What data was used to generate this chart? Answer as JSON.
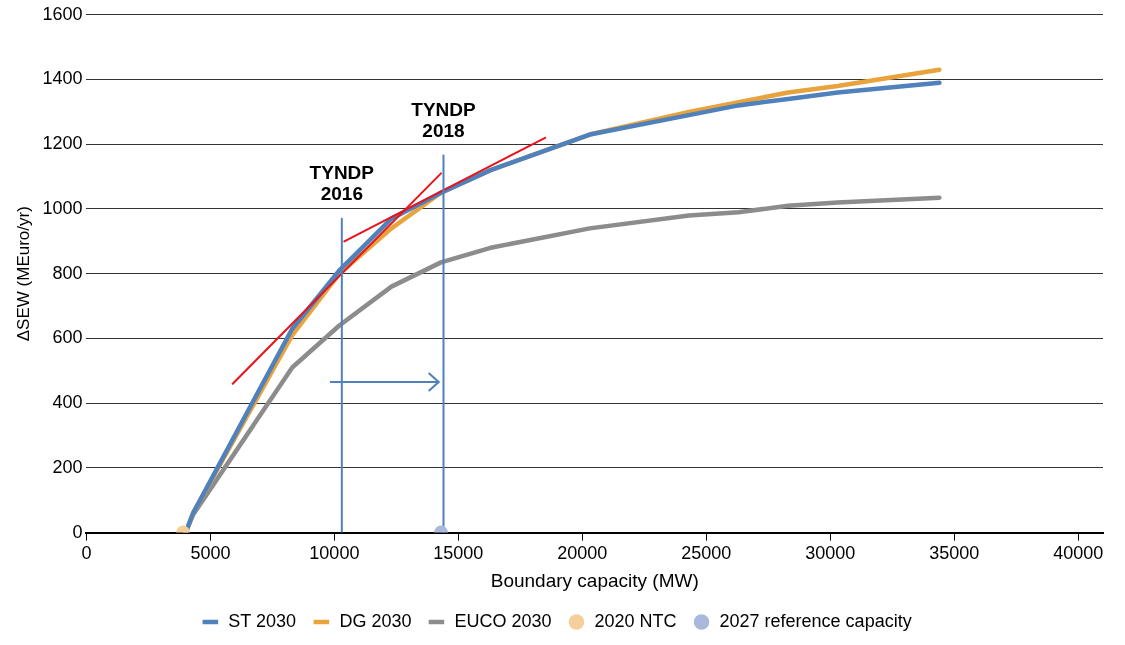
{
  "chart_data": {
    "type": "line",
    "xlabel": "Boundary capacity (MW)",
    "ylabel": "ΔSEW (MEuro/yr)",
    "xlim": [
      0,
      41000
    ],
    "xticks": [
      0,
      5000,
      10000,
      15000,
      20000,
      25000,
      30000,
      35000,
      40000
    ],
    "ylim": [
      0,
      1600
    ],
    "yticks": [
      0,
      200,
      400,
      600,
      800,
      1000,
      1200,
      1400,
      1600
    ],
    "grid": "y",
    "legend": "bottom",
    "marker": "none",
    "line_style": "solid",
    "series": [
      {
        "name": "ST 2030",
        "color": "#4f81bd",
        "x": [
          4000,
          4300,
          8300,
          10200,
          12300,
          14300,
          16300,
          20300,
          24300,
          26300,
          28300,
          30300,
          34400
        ],
        "values": [
          0,
          60,
          630,
          810,
          970,
          1050,
          1120,
          1230,
          1290,
          1320,
          1340,
          1360,
          1390
        ]
      },
      {
        "name": "DG 2030",
        "color": "#e8a33d",
        "x": [
          4000,
          4300,
          8300,
          10200,
          12300,
          14300,
          16300,
          20300,
          24300,
          26300,
          28300,
          30300,
          34400
        ],
        "values": [
          0,
          60,
          610,
          800,
          940,
          1050,
          1120,
          1230,
          1300,
          1330,
          1360,
          1380,
          1430
        ]
      },
      {
        "name": "EUCO 2030",
        "color": "#8c8c8c",
        "x": [
          4000,
          4300,
          8300,
          10200,
          12300,
          14300,
          16300,
          20300,
          24300,
          26300,
          28300,
          30300,
          34400
        ],
        "values": [
          0,
          55,
          510,
          640,
          760,
          835,
          880,
          940,
          980,
          990,
          1010,
          1020,
          1035
        ]
      },
      {
        "name": "2020 NTC",
        "type": "scatter",
        "marker": "circle",
        "color": "#f5cf9a",
        "x": [
          3900
        ],
        "values": [
          0
        ]
      },
      {
        "name": "2027 reference capacity",
        "type": "scatter",
        "marker": "circle",
        "color": "#a9b9dc",
        "x": [
          14300
        ],
        "values": [
          0
        ]
      },
      {
        "type": "line",
        "color": "#4f81bd",
        "x": [
          10300,
          10300
        ],
        "values": [
          0,
          970
        ]
      },
      {
        "type": "line",
        "color": "#4f81bd",
        "x": [
          14400,
          14400
        ],
        "values": [
          0,
          1165
        ]
      },
      {
        "type": "line",
        "color": "#e8141b",
        "x": [
          5900,
          14300
        ],
        "values": [
          460,
          1110
        ]
      },
      {
        "type": "line",
        "color": "#e8141b",
        "x": [
          10400,
          18500
        ],
        "values": [
          900,
          1220
        ]
      }
    ],
    "annotations": [
      {
        "text": "TYNDP 2016",
        "x": 10300,
        "y": 970
      },
      {
        "text": "TYNDP 2018",
        "x": 14400,
        "y": 1165
      }
    ]
  }
}
